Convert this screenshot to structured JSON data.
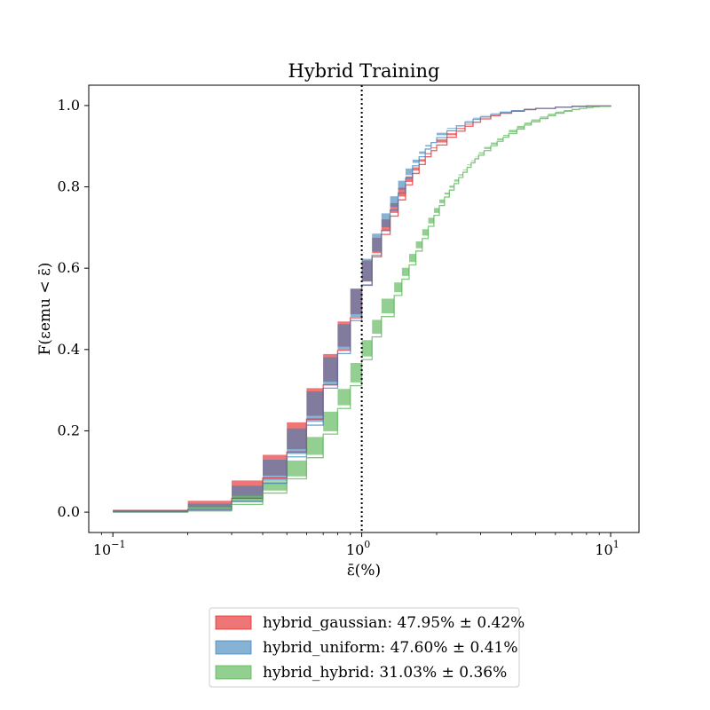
{
  "chart_data": {
    "type": "line",
    "title": "Hybrid Training",
    "xlabel": "ε̄(%)",
    "ylabel": "F(εemu < ε̄)",
    "x_scale": "log",
    "xlim": [
      0.08,
      13
    ],
    "ylim": [
      -0.05,
      1.05
    ],
    "x_ticks": [
      {
        "value": 0.1,
        "base": "10",
        "exp": "−1"
      },
      {
        "value": 1,
        "base": "10",
        "exp": "0"
      },
      {
        "value": 10,
        "base": "10",
        "exp": "1"
      }
    ],
    "y_ticks": [
      {
        "value": 0.0,
        "label": "0.0"
      },
      {
        "value": 0.2,
        "label": "0.2"
      },
      {
        "value": 0.4,
        "label": "0.4"
      },
      {
        "value": 0.6,
        "label": "0.6"
      },
      {
        "value": 0.8,
        "label": "0.8"
      },
      {
        "value": 1.0,
        "label": "1.0"
      }
    ],
    "vline": {
      "x": 1.0,
      "style": "dotted",
      "color": "#000000"
    },
    "grid": false,
    "legend_position": "bottom (outside)",
    "series": [
      {
        "name": "hybrid_gaussian",
        "legend_label": "hybrid_gaussian: 47.95% ± 0.42%",
        "color": "#e41a1c",
        "x": [
          0.1,
          0.2,
          0.3,
          0.4,
          0.5,
          0.6,
          0.7,
          0.8,
          0.9,
          1.0,
          1.1,
          1.2,
          1.3,
          1.4,
          1.5,
          1.6,
          1.7,
          1.8,
          1.9,
          2.0,
          2.2,
          2.4,
          2.6,
          2.8,
          3.0,
          3.3,
          3.6,
          4.0,
          4.5,
          5.0,
          6.0,
          7.0,
          8.0,
          10.0
        ],
        "y": [
          0.002,
          0.007,
          0.034,
          0.084,
          0.148,
          0.229,
          0.313,
          0.398,
          0.478,
          0.558,
          0.628,
          0.683,
          0.728,
          0.768,
          0.805,
          0.833,
          0.855,
          0.874,
          0.889,
          0.903,
          0.922,
          0.937,
          0.949,
          0.959,
          0.967,
          0.975,
          0.981,
          0.986,
          0.99,
          0.993,
          0.996,
          0.998,
          0.999,
          1.0
        ],
        "band": [
          0.004,
          0.005,
          0.006,
          0.006,
          0.007,
          0.008,
          0.008,
          0.009,
          0.009,
          0.009,
          0.009,
          0.008,
          0.008,
          0.008,
          0.007,
          0.007,
          0.007,
          0.006,
          0.006,
          0.006,
          0.005,
          0.005,
          0.004,
          0.004,
          0.004,
          0.003,
          0.003,
          0.002,
          0.002,
          0.002,
          0.001,
          0.001,
          0.001,
          0.0
        ]
      },
      {
        "name": "hybrid_uniform",
        "legend_label": "hybrid_uniform: 47.60% ± 0.41%",
        "color": "#377eb8",
        "x": [
          0.1,
          0.2,
          0.3,
          0.4,
          0.5,
          0.6,
          0.7,
          0.8,
          0.9,
          1.0,
          1.1,
          1.2,
          1.3,
          1.4,
          1.5,
          1.6,
          1.7,
          1.8,
          1.9,
          2.0,
          2.2,
          2.4,
          2.6,
          2.8,
          3.0,
          3.3,
          3.6,
          4.0,
          4.5,
          5.0,
          6.0,
          7.0,
          8.0,
          10.0
        ],
        "y": [
          0.001,
          0.005,
          0.027,
          0.071,
          0.136,
          0.214,
          0.305,
          0.39,
          0.471,
          0.559,
          0.632,
          0.693,
          0.743,
          0.785,
          0.822,
          0.852,
          0.874,
          0.893,
          0.909,
          0.921,
          0.938,
          0.95,
          0.959,
          0.966,
          0.972,
          0.978,
          0.983,
          0.987,
          0.99,
          0.993,
          0.996,
          0.998,
          0.999,
          1.0
        ],
        "band": [
          0.004,
          0.005,
          0.006,
          0.006,
          0.007,
          0.008,
          0.008,
          0.009,
          0.009,
          0.009,
          0.009,
          0.008,
          0.008,
          0.008,
          0.007,
          0.007,
          0.007,
          0.006,
          0.006,
          0.006,
          0.005,
          0.005,
          0.004,
          0.004,
          0.004,
          0.003,
          0.003,
          0.002,
          0.002,
          0.002,
          0.001,
          0.001,
          0.001,
          0.0
        ]
      },
      {
        "name": "hybrid_hybrid",
        "legend_label": "hybrid_hybrid: 31.03% ± 0.36%",
        "color": "#4daf4a",
        "x": [
          0.1,
          0.2,
          0.3,
          0.4,
          0.5,
          0.6,
          0.7,
          0.8,
          0.9,
          1.0,
          1.1,
          1.2,
          1.35,
          1.45,
          1.55,
          1.65,
          1.75,
          1.85,
          1.95,
          2.05,
          2.15,
          2.25,
          2.35,
          2.45,
          2.55,
          2.65,
          2.75,
          2.85,
          2.95,
          3.1,
          3.3,
          3.5,
          3.7,
          3.9,
          4.2,
          4.5,
          4.8,
          5.2,
          5.6,
          6.0,
          6.5,
          7.0,
          7.5,
          8.0,
          8.5,
          9.0,
          10.0
        ],
        "y": [
          0.0,
          0.003,
          0.019,
          0.047,
          0.082,
          0.134,
          0.192,
          0.255,
          0.311,
          0.375,
          0.431,
          0.481,
          0.533,
          0.573,
          0.608,
          0.642,
          0.673,
          0.703,
          0.73,
          0.754,
          0.775,
          0.792,
          0.808,
          0.823,
          0.836,
          0.848,
          0.859,
          0.869,
          0.878,
          0.889,
          0.901,
          0.912,
          0.922,
          0.931,
          0.942,
          0.952,
          0.96,
          0.968,
          0.975,
          0.981,
          0.986,
          0.99,
          0.993,
          0.995,
          0.997,
          0.998,
          1.0
        ],
        "band": [
          0.003,
          0.004,
          0.005,
          0.006,
          0.006,
          0.007,
          0.007,
          0.008,
          0.008,
          0.008,
          0.008,
          0.008,
          0.008,
          0.008,
          0.007,
          0.007,
          0.007,
          0.007,
          0.006,
          0.006,
          0.006,
          0.006,
          0.005,
          0.005,
          0.005,
          0.005,
          0.004,
          0.004,
          0.004,
          0.004,
          0.003,
          0.003,
          0.003,
          0.003,
          0.002,
          0.002,
          0.002,
          0.002,
          0.002,
          0.001,
          0.001,
          0.001,
          0.001,
          0.001,
          0.0,
          0.0,
          0.0
        ]
      }
    ]
  }
}
